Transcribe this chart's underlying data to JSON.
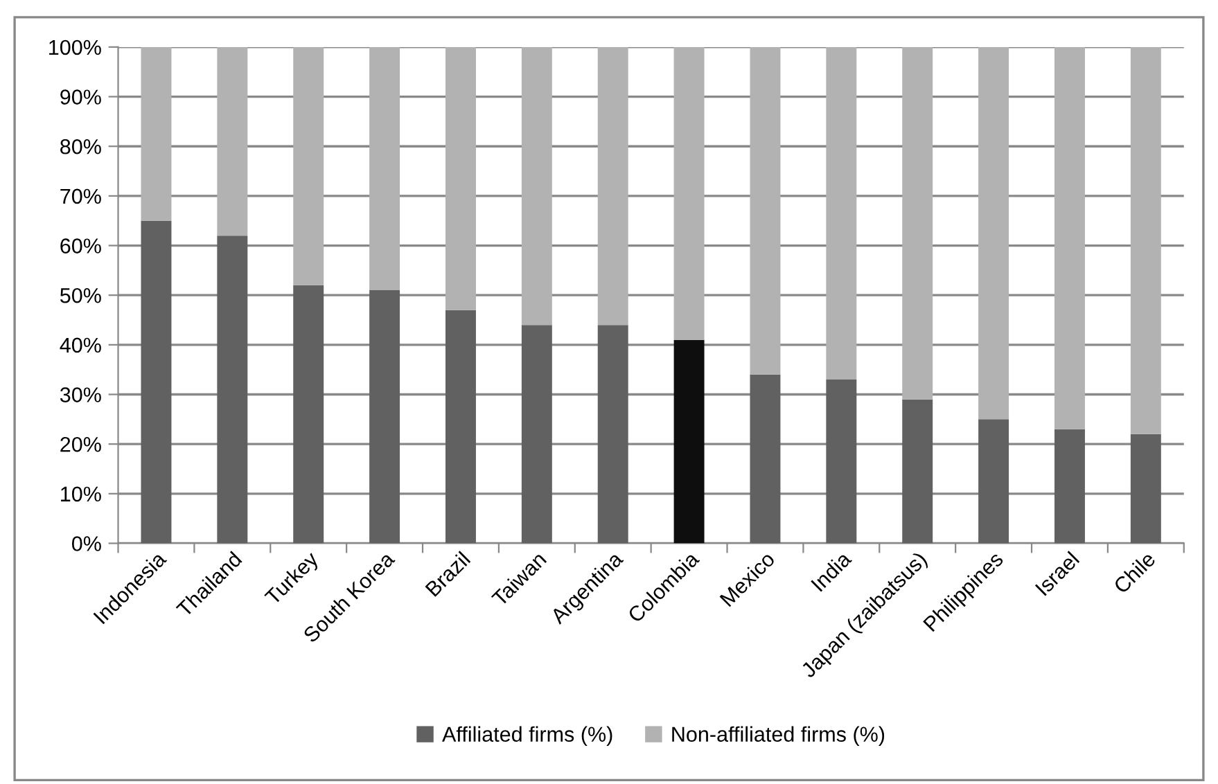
{
  "chart_data": {
    "type": "bar",
    "stacked": true,
    "categories": [
      "Indonesia",
      "Thailand",
      "Turkey",
      "South Korea",
      "Brazil",
      "Taiwan",
      "Argentina",
      "Colombia",
      "Mexico",
      "India",
      "Japan (zaibatsus)",
      "Philippines",
      "Israel",
      "Chile"
    ],
    "series": [
      {
        "name": "Affiliated firms (%)",
        "color": "#616161",
        "colors": [
          "#616161",
          "#616161",
          "#616161",
          "#616161",
          "#616161",
          "#616161",
          "#616161",
          "#0e0e0e",
          "#616161",
          "#616161",
          "#616161",
          "#616161",
          "#616161",
          "#616161"
        ],
        "values": [
          65,
          62,
          52,
          51,
          47,
          44,
          44,
          41,
          34,
          33,
          29,
          25,
          23,
          22
        ]
      },
      {
        "name": "Non-affiliated firms (%)",
        "color": "#b2b2b2",
        "values": [
          35,
          38,
          48,
          49,
          53,
          56,
          56,
          59,
          66,
          67,
          71,
          75,
          77,
          78
        ]
      }
    ],
    "ylim": [
      0,
      100
    ],
    "yticks": [
      {
        "value": 0,
        "label": "0%"
      },
      {
        "value": 10,
        "label": "10%"
      },
      {
        "value": 20,
        "label": "20%"
      },
      {
        "value": 30,
        "label": "30%"
      },
      {
        "value": 40,
        "label": "40%"
      },
      {
        "value": 50,
        "label": "50%"
      },
      {
        "value": 60,
        "label": "60%"
      },
      {
        "value": 70,
        "label": "70%"
      },
      {
        "value": 80,
        "label": "80%"
      },
      {
        "value": 90,
        "label": "90%"
      },
      {
        "value": 100,
        "label": "100%"
      }
    ],
    "grid": "y",
    "legend": "bottom"
  }
}
